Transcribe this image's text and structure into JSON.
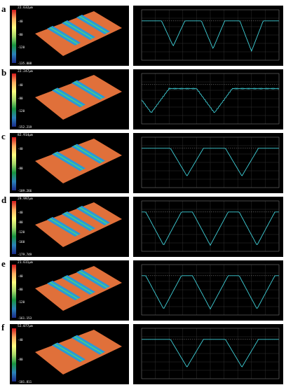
{
  "panels": [
    {
      "letter": "a",
      "top_label": "22.632μm",
      "bottom_label": "-135.808",
      "ticks": [
        "-40",
        "-80",
        "-120"
      ],
      "profile": "v3sharp"
    },
    {
      "letter": "b",
      "top_label": "22.247μm",
      "bottom_label": "-152.219",
      "ticks": [
        "-40",
        "-80",
        "-120"
      ],
      "profile": "trap2"
    },
    {
      "letter": "c",
      "top_label": "82.914μm",
      "bottom_label": "-109.266",
      "ticks": [
        "-40",
        "-80"
      ],
      "profile": "v2"
    },
    {
      "letter": "d",
      "top_label": "29.997μm",
      "bottom_label": "-179.749",
      "ticks": [
        "-40",
        "-80",
        "-120",
        "-160"
      ],
      "profile": "v3wide"
    },
    {
      "letter": "e",
      "top_label": "21.611μm",
      "bottom_label": "-161.153",
      "ticks": [
        "-40",
        "-80",
        "-120"
      ],
      "profile": "v3wide"
    },
    {
      "letter": "f",
      "top_label": "52.077μm",
      "bottom_label": "-101.811",
      "ticks": [
        "-40",
        "-80"
      ],
      "profile": "v2"
    }
  ],
  "colors": {
    "surface": "#e0703a",
    "profile": "#3fd0d8",
    "grid": "#3a3a3a"
  }
}
